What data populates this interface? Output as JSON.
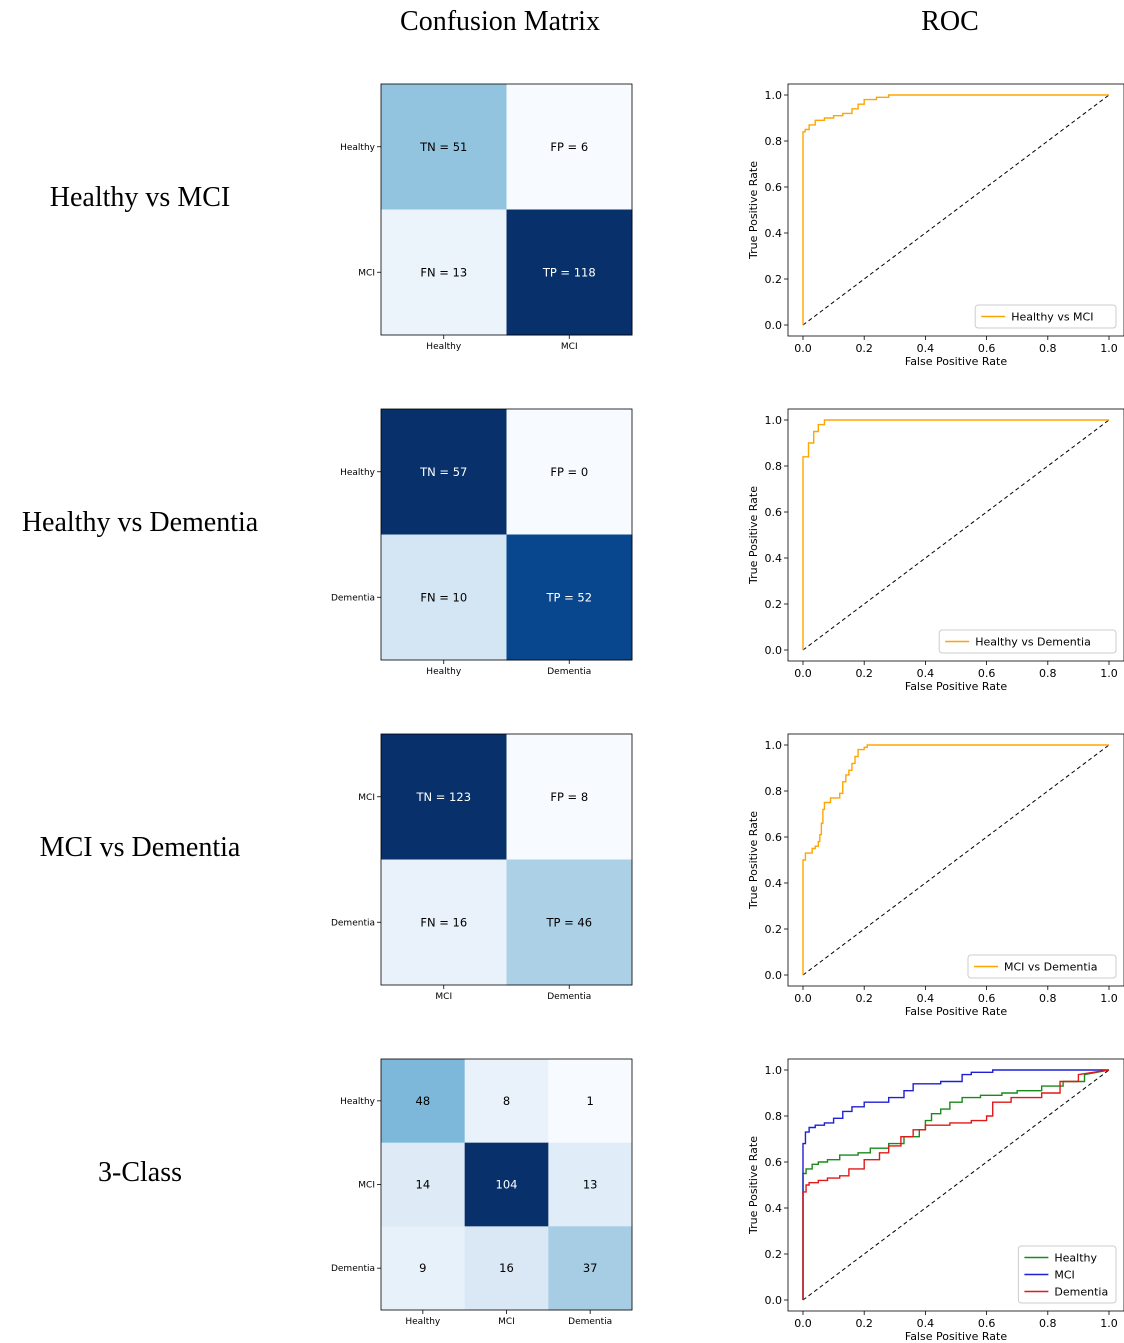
{
  "headers": {
    "confusion": "Confusion Matrix",
    "roc": "ROC"
  },
  "colors": {
    "roc_binary": "#FFA500",
    "healthy": "#1a8a1a",
    "mci": "#1f1fd6",
    "dementia": "#e01919",
    "diagonal": "#000000"
  },
  "chart_data": [
    {
      "type": "heatmap",
      "row_label": "Healthy vs MCI",
      "rows": [
        "Healthy",
        "MCI"
      ],
      "cols": [
        "Healthy",
        "MCI"
      ],
      "cells": [
        [
          "TN = 51",
          "FP = 6"
        ],
        [
          "FN = 13",
          "TP = 118"
        ]
      ],
      "values": [
        [
          51,
          6
        ],
        [
          13,
          118
        ]
      ]
    },
    {
      "type": "line",
      "xlabel": "False Positive Rate",
      "ylabel": "True Positive Rate",
      "xlim": [
        0,
        1
      ],
      "ylim": [
        0,
        1
      ],
      "ticks": [
        "0.0",
        "0.2",
        "0.4",
        "0.6",
        "0.8",
        "1.0"
      ],
      "legend_position": "lower-right",
      "series": [
        {
          "name": "Healthy vs MCI",
          "color": "#FFA500",
          "x": [
            0,
            0,
            0.007,
            0.007,
            0.02,
            0.02,
            0.04,
            0.04,
            0.07,
            0.07,
            0.1,
            0.1,
            0.13,
            0.13,
            0.16,
            0.16,
            0.18,
            0.18,
            0.2,
            0.2,
            0.24,
            0.24,
            0.28,
            0.28,
            1
          ],
          "y": [
            0,
            0.84,
            0.84,
            0.85,
            0.85,
            0.87,
            0.87,
            0.89,
            0.89,
            0.9,
            0.9,
            0.91,
            0.91,
            0.92,
            0.92,
            0.94,
            0.94,
            0.96,
            0.96,
            0.98,
            0.98,
            0.99,
            0.99,
            1,
            1
          ]
        }
      ]
    },
    {
      "type": "heatmap",
      "row_label": "Healthy vs Dementia",
      "rows": [
        "Healthy",
        "Dementia"
      ],
      "cols": [
        "Healthy",
        "Dementia"
      ],
      "cells": [
        [
          "TN = 57",
          "FP = 0"
        ],
        [
          "FN = 10",
          "TP = 52"
        ]
      ],
      "values": [
        [
          57,
          0
        ],
        [
          10,
          52
        ]
      ]
    },
    {
      "type": "line",
      "xlabel": "False Positive Rate",
      "ylabel": "True Positive Rate",
      "xlim": [
        0,
        1
      ],
      "ylim": [
        0,
        1
      ],
      "ticks": [
        "0.0",
        "0.2",
        "0.4",
        "0.6",
        "0.8",
        "1.0"
      ],
      "legend_position": "lower-right",
      "series": [
        {
          "name": "Healthy vs Dementia",
          "color": "#FFA500",
          "x": [
            0,
            0,
            0.018,
            0.018,
            0.035,
            0.035,
            0.05,
            0.05,
            0.07,
            0.07,
            1
          ],
          "y": [
            0,
            0.84,
            0.84,
            0.9,
            0.9,
            0.95,
            0.95,
            0.98,
            0.98,
            1,
            1
          ]
        }
      ]
    },
    {
      "type": "heatmap",
      "row_label": "MCI vs Dementia",
      "rows": [
        "MCI",
        "Dementia"
      ],
      "cols": [
        "MCI",
        "Dementia"
      ],
      "cells": [
        [
          "TN = 123",
          "FP = 8"
        ],
        [
          "FN = 16",
          "TP = 46"
        ]
      ],
      "values": [
        [
          123,
          8
        ],
        [
          16,
          46
        ]
      ]
    },
    {
      "type": "line",
      "xlabel": "False Positive Rate",
      "ylabel": "True Positive Rate",
      "xlim": [
        0,
        1
      ],
      "ylim": [
        0,
        1
      ],
      "ticks": [
        "0.0",
        "0.2",
        "0.4",
        "0.6",
        "0.8",
        "1.0"
      ],
      "legend_position": "lower-right",
      "series": [
        {
          "name": "MCI vs Dementia",
          "color": "#FFA500",
          "x": [
            0,
            0,
            0.008,
            0.008,
            0.03,
            0.03,
            0.04,
            0.04,
            0.05,
            0.05,
            0.055,
            0.055,
            0.06,
            0.06,
            0.065,
            0.065,
            0.07,
            0.07,
            0.09,
            0.09,
            0.12,
            0.12,
            0.13,
            0.13,
            0.14,
            0.14,
            0.15,
            0.15,
            0.16,
            0.16,
            0.17,
            0.17,
            0.18,
            0.18,
            0.2,
            0.2,
            0.21,
            0.21,
            1
          ],
          "y": [
            0,
            0.5,
            0.5,
            0.53,
            0.53,
            0.55,
            0.55,
            0.56,
            0.56,
            0.58,
            0.58,
            0.61,
            0.61,
            0.66,
            0.66,
            0.72,
            0.72,
            0.75,
            0.75,
            0.77,
            0.77,
            0.79,
            0.79,
            0.84,
            0.84,
            0.87,
            0.87,
            0.89,
            0.89,
            0.92,
            0.92,
            0.95,
            0.95,
            0.98,
            0.98,
            0.99,
            0.99,
            1,
            1
          ]
        }
      ]
    },
    {
      "type": "heatmap",
      "row_label": "3-Class",
      "rows": [
        "Healthy",
        "MCI",
        "Dementia"
      ],
      "cols": [
        "Healthy",
        "MCI",
        "Dementia"
      ],
      "cells": [
        [
          "48",
          "8",
          "1"
        ],
        [
          "14",
          "104",
          "13"
        ],
        [
          "9",
          "16",
          "37"
        ]
      ],
      "values": [
        [
          48,
          8,
          1
        ],
        [
          14,
          104,
          13
        ],
        [
          9,
          16,
          37
        ]
      ]
    },
    {
      "type": "line",
      "xlabel": "False Positive Rate",
      "ylabel": "True Positive Rate",
      "xlim": [
        0,
        1
      ],
      "ylim": [
        0,
        1
      ],
      "ticks": [
        "0.0",
        "0.2",
        "0.4",
        "0.6",
        "0.8",
        "1.0"
      ],
      "legend_position": "lower-right",
      "series": [
        {
          "name": "Healthy",
          "color": "#1a8a1a",
          "x": [
            0,
            0,
            0.01,
            0.01,
            0.03,
            0.03,
            0.05,
            0.05,
            0.08,
            0.08,
            0.12,
            0.12,
            0.18,
            0.18,
            0.22,
            0.22,
            0.28,
            0.28,
            0.33,
            0.33,
            0.38,
            0.38,
            0.4,
            0.4,
            0.42,
            0.42,
            0.45,
            0.45,
            0.48,
            0.48,
            0.52,
            0.52,
            0.58,
            0.58,
            0.65,
            0.65,
            0.7,
            0.7,
            0.78,
            0.78,
            0.85,
            0.85,
            0.92,
            0.92,
            1
          ],
          "y": [
            0,
            0.55,
            0.55,
            0.57,
            0.57,
            0.59,
            0.59,
            0.6,
            0.6,
            0.61,
            0.61,
            0.63,
            0.63,
            0.64,
            0.64,
            0.66,
            0.66,
            0.68,
            0.68,
            0.71,
            0.71,
            0.74,
            0.74,
            0.78,
            0.78,
            0.81,
            0.81,
            0.83,
            0.83,
            0.86,
            0.86,
            0.88,
            0.88,
            0.89,
            0.89,
            0.9,
            0.9,
            0.91,
            0.91,
            0.93,
            0.93,
            0.95,
            0.95,
            0.98,
            1
          ]
        },
        {
          "name": "MCI",
          "color": "#1f1fd6",
          "x": [
            0,
            0,
            0.008,
            0.008,
            0.02,
            0.02,
            0.04,
            0.04,
            0.07,
            0.07,
            0.1,
            0.1,
            0.13,
            0.13,
            0.16,
            0.16,
            0.2,
            0.2,
            0.28,
            0.28,
            0.33,
            0.33,
            0.36,
            0.36,
            0.45,
            0.45,
            0.52,
            0.52,
            0.55,
            0.55,
            0.62,
            0.62,
            0.7,
            0.7,
            0.8,
            0.8,
            1
          ],
          "y": [
            0,
            0.68,
            0.68,
            0.73,
            0.73,
            0.75,
            0.75,
            0.76,
            0.76,
            0.77,
            0.77,
            0.79,
            0.79,
            0.82,
            0.82,
            0.84,
            0.84,
            0.86,
            0.86,
            0.88,
            0.88,
            0.91,
            0.91,
            0.94,
            0.94,
            0.95,
            0.95,
            0.98,
            0.98,
            0.99,
            0.99,
            1,
            1,
            1,
            1,
            1,
            1
          ]
        },
        {
          "name": "Dementia",
          "color": "#e01919",
          "x": [
            0,
            0,
            0.01,
            0.01,
            0.02,
            0.02,
            0.05,
            0.05,
            0.08,
            0.08,
            0.12,
            0.12,
            0.15,
            0.15,
            0.2,
            0.2,
            0.25,
            0.25,
            0.28,
            0.28,
            0.32,
            0.32,
            0.36,
            0.36,
            0.4,
            0.4,
            0.48,
            0.48,
            0.55,
            0.55,
            0.6,
            0.6,
            0.62,
            0.62,
            0.68,
            0.68,
            0.78,
            0.78,
            0.84,
            0.84,
            0.9,
            0.9,
            1
          ],
          "y": [
            0,
            0.47,
            0.47,
            0.5,
            0.5,
            0.51,
            0.51,
            0.52,
            0.52,
            0.53,
            0.53,
            0.54,
            0.54,
            0.57,
            0.57,
            0.61,
            0.61,
            0.64,
            0.64,
            0.67,
            0.67,
            0.71,
            0.71,
            0.74,
            0.74,
            0.76,
            0.76,
            0.77,
            0.77,
            0.78,
            0.78,
            0.8,
            0.8,
            0.86,
            0.86,
            0.88,
            0.88,
            0.9,
            0.9,
            0.95,
            0.95,
            0.98,
            1
          ]
        }
      ]
    }
  ]
}
